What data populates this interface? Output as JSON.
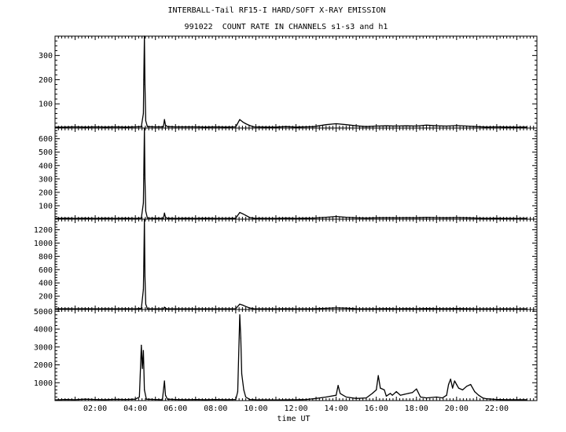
{
  "title": "INTERBALL-Tail RF15-I HARD/SOFT X-RAY EMISSION",
  "subtitle": "991022  COUNT RATE IN CHANNELS s1-s3 and h1",
  "chart_data": [
    {
      "type": "line",
      "channel": "s1",
      "ylim": [
        0,
        380
      ],
      "y_ticks": [
        100,
        200,
        300
      ],
      "points": [
        [
          0.0,
          4
        ],
        [
          0.5,
          4
        ],
        [
          1.0,
          5
        ],
        [
          1.5,
          4
        ],
        [
          2.0,
          5
        ],
        [
          2.5,
          4
        ],
        [
          3.0,
          5
        ],
        [
          3.5,
          4
        ],
        [
          4.0,
          5
        ],
        [
          4.3,
          6
        ],
        [
          4.4,
          60
        ],
        [
          4.42,
          200
        ],
        [
          4.45,
          380
        ],
        [
          4.48,
          180
        ],
        [
          4.52,
          30
        ],
        [
          4.6,
          6
        ],
        [
          5.0,
          5
        ],
        [
          5.4,
          5
        ],
        [
          5.45,
          35
        ],
        [
          5.5,
          12
        ],
        [
          5.6,
          6
        ],
        [
          6.0,
          5
        ],
        [
          6.5,
          5
        ],
        [
          7.0,
          5
        ],
        [
          7.5,
          4
        ],
        [
          8.0,
          5
        ],
        [
          8.5,
          4
        ],
        [
          9.0,
          5
        ],
        [
          9.2,
          35
        ],
        [
          9.35,
          25
        ],
        [
          9.5,
          18
        ],
        [
          9.7,
          10
        ],
        [
          9.9,
          5
        ],
        [
          10.5,
          4
        ],
        [
          11.0,
          4
        ],
        [
          11.5,
          6
        ],
        [
          12.0,
          4
        ],
        [
          12.5,
          5
        ],
        [
          12.9,
          6
        ],
        [
          13.5,
          14
        ],
        [
          14.0,
          18
        ],
        [
          14.5,
          14
        ],
        [
          15.0,
          9
        ],
        [
          15.5,
          6
        ],
        [
          16.0,
          8
        ],
        [
          16.5,
          9
        ],
        [
          17.0,
          8
        ],
        [
          17.5,
          9
        ],
        [
          18.0,
          8
        ],
        [
          18.5,
          12
        ],
        [
          19.0,
          9
        ],
        [
          19.5,
          8
        ],
        [
          20.0,
          10
        ],
        [
          20.5,
          8
        ],
        [
          21.0,
          6
        ],
        [
          21.5,
          4
        ],
        [
          22.0,
          5
        ],
        [
          22.5,
          4
        ],
        [
          23.0,
          4
        ],
        [
          23.5,
          4
        ]
      ]
    },
    {
      "type": "line",
      "channel": "s2",
      "ylim": [
        0,
        680
      ],
      "y_ticks": [
        100,
        200,
        300,
        400,
        500,
        600
      ],
      "points": [
        [
          0.0,
          6
        ],
        [
          0.5,
          7
        ],
        [
          1.0,
          6
        ],
        [
          1.5,
          7
        ],
        [
          2.0,
          6
        ],
        [
          2.5,
          7
        ],
        [
          3.0,
          6
        ],
        [
          3.5,
          7
        ],
        [
          4.0,
          6
        ],
        [
          4.3,
          8
        ],
        [
          4.4,
          120
        ],
        [
          4.42,
          330
        ],
        [
          4.45,
          680
        ],
        [
          4.48,
          300
        ],
        [
          4.52,
          60
        ],
        [
          4.6,
          8
        ],
        [
          5.0,
          7
        ],
        [
          5.4,
          6
        ],
        [
          5.45,
          45
        ],
        [
          5.5,
          15
        ],
        [
          5.6,
          7
        ],
        [
          6.0,
          6
        ],
        [
          6.5,
          7
        ],
        [
          7.0,
          6
        ],
        [
          7.5,
          7
        ],
        [
          8.0,
          6
        ],
        [
          8.5,
          6
        ],
        [
          9.0,
          7
        ],
        [
          9.2,
          50
        ],
        [
          9.35,
          40
        ],
        [
          9.5,
          28
        ],
        [
          9.7,
          12
        ],
        [
          9.9,
          7
        ],
        [
          10.5,
          6
        ],
        [
          11.0,
          6
        ],
        [
          11.5,
          8
        ],
        [
          12.0,
          6
        ],
        [
          12.5,
          7
        ],
        [
          12.9,
          8
        ],
        [
          13.5,
          14
        ],
        [
          14.0,
          20
        ],
        [
          14.5,
          14
        ],
        [
          15.0,
          10
        ],
        [
          15.5,
          8
        ],
        [
          16.0,
          10
        ],
        [
          16.5,
          11
        ],
        [
          17.0,
          10
        ],
        [
          17.5,
          11
        ],
        [
          18.0,
          10
        ],
        [
          18.5,
          13
        ],
        [
          19.0,
          11
        ],
        [
          19.5,
          10
        ],
        [
          20.0,
          12
        ],
        [
          20.5,
          10
        ],
        [
          21.0,
          8
        ],
        [
          21.5,
          6
        ],
        [
          22.0,
          7
        ],
        [
          22.5,
          6
        ],
        [
          23.0,
          6
        ],
        [
          23.5,
          6
        ]
      ]
    },
    {
      "type": "line",
      "channel": "s3",
      "ylim": [
        0,
        1360
      ],
      "y_ticks": [
        200,
        400,
        600,
        800,
        1000,
        1200
      ],
      "points": [
        [
          0.0,
          10
        ],
        [
          0.5,
          12
        ],
        [
          1.0,
          10
        ],
        [
          1.5,
          12
        ],
        [
          2.0,
          10
        ],
        [
          2.5,
          12
        ],
        [
          3.0,
          10
        ],
        [
          3.5,
          12
        ],
        [
          4.0,
          10
        ],
        [
          4.3,
          15
        ],
        [
          4.4,
          300
        ],
        [
          4.42,
          650
        ],
        [
          4.45,
          1360
        ],
        [
          4.48,
          500
        ],
        [
          4.52,
          80
        ],
        [
          4.6,
          12
        ],
        [
          5.0,
          11
        ],
        [
          5.4,
          10
        ],
        [
          5.45,
          35
        ],
        [
          5.5,
          15
        ],
        [
          5.6,
          11
        ],
        [
          6.0,
          10
        ],
        [
          6.5,
          11
        ],
        [
          7.0,
          10
        ],
        [
          7.5,
          11
        ],
        [
          8.0,
          10
        ],
        [
          8.5,
          10
        ],
        [
          9.0,
          12
        ],
        [
          9.2,
          80
        ],
        [
          9.35,
          65
        ],
        [
          9.5,
          45
        ],
        [
          9.7,
          22
        ],
        [
          9.9,
          12
        ],
        [
          10.5,
          10
        ],
        [
          11.0,
          10
        ],
        [
          11.5,
          12
        ],
        [
          12.0,
          10
        ],
        [
          12.5,
          11
        ],
        [
          12.9,
          12
        ],
        [
          13.5,
          18
        ],
        [
          14.0,
          25
        ],
        [
          14.5,
          20
        ],
        [
          15.0,
          12
        ],
        [
          15.5,
          10
        ],
        [
          16.0,
          12
        ],
        [
          16.5,
          13
        ],
        [
          17.0,
          12
        ],
        [
          17.5,
          13
        ],
        [
          18.0,
          12
        ],
        [
          18.5,
          14
        ],
        [
          19.0,
          13
        ],
        [
          19.5,
          12
        ],
        [
          20.0,
          14
        ],
        [
          20.5,
          12
        ],
        [
          21.0,
          11
        ],
        [
          21.5,
          10
        ],
        [
          22.0,
          11
        ],
        [
          22.5,
          10
        ],
        [
          23.0,
          10
        ],
        [
          23.5,
          10
        ]
      ]
    },
    {
      "type": "line",
      "channel": "h1",
      "ylim": [
        0,
        5100
      ],
      "y_ticks": [
        1000,
        2000,
        3000,
        4000,
        5000
      ],
      "xlabel": "time UT",
      "x_ticks": [
        "02:00",
        "04:00",
        "06:00",
        "08:00",
        "10:00",
        "12:00",
        "14:00",
        "16:00",
        "18:00",
        "20:00",
        "22:00"
      ],
      "points": [
        [
          0.0,
          40
        ],
        [
          0.5,
          60
        ],
        [
          1.0,
          50
        ],
        [
          1.5,
          80
        ],
        [
          2.0,
          60
        ],
        [
          2.5,
          50
        ],
        [
          3.0,
          70
        ],
        [
          3.5,
          60
        ],
        [
          4.0,
          80
        ],
        [
          4.2,
          200
        ],
        [
          4.3,
          3100
        ],
        [
          4.35,
          1800
        ],
        [
          4.4,
          2800
        ],
        [
          4.45,
          600
        ],
        [
          4.55,
          80
        ],
        [
          5.0,
          60
        ],
        [
          5.35,
          50
        ],
        [
          5.45,
          1100
        ],
        [
          5.5,
          300
        ],
        [
          5.6,
          80
        ],
        [
          6.0,
          60
        ],
        [
          6.5,
          50
        ],
        [
          7.0,
          60
        ],
        [
          7.5,
          50
        ],
        [
          8.0,
          60
        ],
        [
          8.5,
          50
        ],
        [
          9.0,
          60
        ],
        [
          9.1,
          500
        ],
        [
          9.2,
          4800
        ],
        [
          9.25,
          3500
        ],
        [
          9.3,
          1500
        ],
        [
          9.4,
          600
        ],
        [
          9.5,
          200
        ],
        [
          9.7,
          60
        ],
        [
          10.0,
          50
        ],
        [
          11.0,
          40
        ],
        [
          12.0,
          50
        ],
        [
          12.5,
          60
        ],
        [
          13.0,
          120
        ],
        [
          13.5,
          200
        ],
        [
          14.0,
          300
        ],
        [
          14.1,
          850
        ],
        [
          14.2,
          400
        ],
        [
          14.5,
          200
        ],
        [
          15.0,
          120
        ],
        [
          15.5,
          150
        ],
        [
          15.8,
          400
        ],
        [
          16.0,
          600
        ],
        [
          16.1,
          1400
        ],
        [
          16.2,
          700
        ],
        [
          16.4,
          600
        ],
        [
          16.5,
          250
        ],
        [
          16.7,
          400
        ],
        [
          16.8,
          300
        ],
        [
          17.0,
          500
        ],
        [
          17.2,
          300
        ],
        [
          17.4,
          350
        ],
        [
          17.6,
          400
        ],
        [
          17.8,
          450
        ],
        [
          18.0,
          650
        ],
        [
          18.2,
          200
        ],
        [
          18.5,
          150
        ],
        [
          19.0,
          200
        ],
        [
          19.3,
          150
        ],
        [
          19.5,
          300
        ],
        [
          19.6,
          900
        ],
        [
          19.7,
          1200
        ],
        [
          19.8,
          700
        ],
        [
          19.9,
          1100
        ],
        [
          20.0,
          900
        ],
        [
          20.1,
          700
        ],
        [
          20.3,
          600
        ],
        [
          20.5,
          800
        ],
        [
          20.7,
          900
        ],
        [
          20.9,
          500
        ],
        [
          21.1,
          300
        ],
        [
          21.3,
          150
        ],
        [
          21.5,
          100
        ],
        [
          22.0,
          60
        ],
        [
          22.5,
          50
        ],
        [
          23.0,
          50
        ],
        [
          23.5,
          50
        ]
      ]
    }
  ]
}
